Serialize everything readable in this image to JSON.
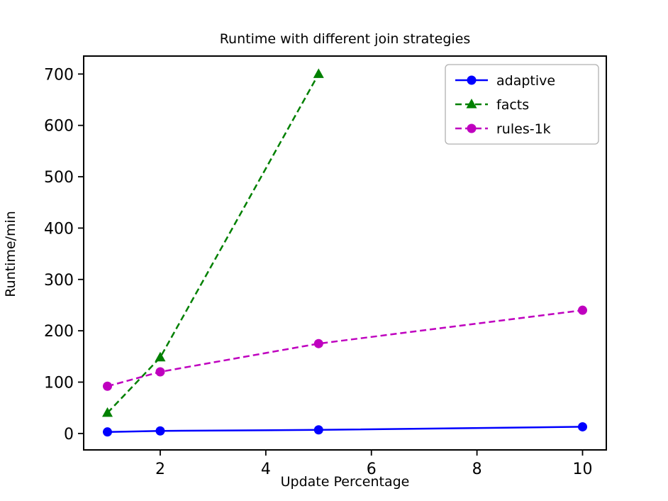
{
  "chart_data": {
    "type": "line",
    "title": "Runtime with different join strategies",
    "xlabel": "Update Percentage",
    "ylabel": "Runtime/min",
    "x_ticks": [
      2,
      4,
      6,
      8,
      10
    ],
    "y_ticks": [
      0,
      100,
      200,
      300,
      400,
      500,
      600,
      700
    ],
    "xlim": [
      0.55,
      10.45
    ],
    "ylim": [
      -32,
      735
    ],
    "grid": false,
    "legend_position": "upper right",
    "background_color": "#ffffff",
    "axis_color": "#000000",
    "series": [
      {
        "name": "adaptive",
        "color": "#0000ff",
        "linestyle": "solid",
        "marker": "circle",
        "x": [
          1,
          2,
          5,
          10
        ],
        "y": [
          3,
          5,
          7,
          13
        ]
      },
      {
        "name": "facts",
        "color": "#008000",
        "linestyle": "dashed",
        "marker": "triangle",
        "x": [
          1,
          2,
          5
        ],
        "y": [
          40,
          148,
          700
        ]
      },
      {
        "name": "rules-1k",
        "color": "#bf00bf",
        "linestyle": "dashed",
        "marker": "circle",
        "x": [
          1,
          2,
          5,
          10
        ],
        "y": [
          92,
          120,
          175,
          240
        ]
      }
    ]
  }
}
